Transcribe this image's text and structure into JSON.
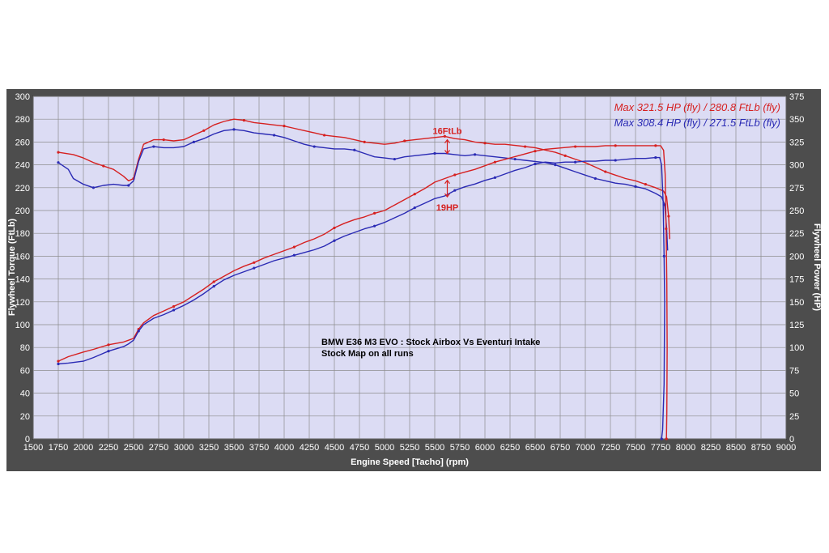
{
  "colors": {
    "frame": "#4d4d4d",
    "plot_bg": "#dcdcf4",
    "grid": "#8c8c8c",
    "text_light": "#ffffff",
    "red_series": "#d62020",
    "blue_series": "#2a2ab4"
  },
  "chart_data": {
    "type": "line",
    "xlabel": "Engine Speed [Tacho] (rpm)",
    "ylabel_left": "Flywheel Torque (FtLb)",
    "ylabel_right": "Flywheel Power (HP)",
    "xlim": [
      1500,
      9000
    ],
    "ylim_left": [
      0,
      300
    ],
    "ylim_right": [
      0,
      375
    ],
    "grid": true,
    "legend_position": "top-right",
    "x_ticks": [
      "1500",
      "1750",
      "2000",
      "2250",
      "2500",
      "2750",
      "3000",
      "3250",
      "3500",
      "3750",
      "4000",
      "4250",
      "4500",
      "4750",
      "5000",
      "5250",
      "5500",
      "5750",
      "6000",
      "6250",
      "6500",
      "6750",
      "7000",
      "7250",
      "7500",
      "7750",
      "8000",
      "8250",
      "8500",
      "8750",
      "9000"
    ],
    "y_left_ticks": [
      "0",
      "20",
      "40",
      "60",
      "80",
      "100",
      "120",
      "140",
      "160",
      "180",
      "200",
      "220",
      "240",
      "260",
      "280",
      "300"
    ],
    "y_right_ticks": [
      "0",
      "25",
      "50",
      "75",
      "100",
      "125",
      "150",
      "175",
      "200",
      "225",
      "250",
      "275",
      "300",
      "325",
      "350",
      "375"
    ],
    "legend": [
      {
        "text": "Max 321.5 HP (fly) / 280.8 FtLb (fly)",
        "color": "#d62020"
      },
      {
        "text": "Max 308.4 HP (fly) / 271.5 FtLb (fly)",
        "color": "#2a2ab4"
      }
    ],
    "annotation_lines": [
      "BMW E36 M3 EVO : Stock Airbox Vs Eventuri Intake",
      "Stock Map on all runs"
    ],
    "delta_labels": [
      {
        "text": "16FtLb",
        "x": 5625,
        "y_torque": 270
      },
      {
        "text": "19HP",
        "x": 5625,
        "y_torque": 203
      }
    ],
    "series": [
      {
        "name": "Max 321.5 HP (fly) / 280.8 FtLb (fly)",
        "color": "#d62020",
        "axis": "torque",
        "points": [
          [
            1750,
            251
          ],
          [
            1900,
            249
          ],
          [
            2000,
            246
          ],
          [
            2100,
            242
          ],
          [
            2200,
            239
          ],
          [
            2300,
            236
          ],
          [
            2400,
            230
          ],
          [
            2450,
            226
          ],
          [
            2500,
            228
          ],
          [
            2550,
            245
          ],
          [
            2600,
            258
          ],
          [
            2700,
            262
          ],
          [
            2800,
            262
          ],
          [
            2900,
            261
          ],
          [
            3000,
            262
          ],
          [
            3100,
            266
          ],
          [
            3200,
            270
          ],
          [
            3300,
            275
          ],
          [
            3400,
            278
          ],
          [
            3500,
            280
          ],
          [
            3600,
            279
          ],
          [
            3700,
            277
          ],
          [
            3800,
            276
          ],
          [
            3900,
            275
          ],
          [
            4000,
            274
          ],
          [
            4100,
            272
          ],
          [
            4200,
            270
          ],
          [
            4300,
            268
          ],
          [
            4400,
            266
          ],
          [
            4500,
            265
          ],
          [
            4600,
            264
          ],
          [
            4700,
            262
          ],
          [
            4800,
            260
          ],
          [
            4900,
            259
          ],
          [
            5000,
            258
          ],
          [
            5100,
            259
          ],
          [
            5200,
            261
          ],
          [
            5300,
            262
          ],
          [
            5400,
            263
          ],
          [
            5500,
            264
          ],
          [
            5600,
            265
          ],
          [
            5700,
            263
          ],
          [
            5800,
            262
          ],
          [
            5900,
            260
          ],
          [
            6000,
            259
          ],
          [
            6100,
            258
          ],
          [
            6200,
            258
          ],
          [
            6300,
            257
          ],
          [
            6400,
            256
          ],
          [
            6500,
            255
          ],
          [
            6600,
            253
          ],
          [
            6700,
            251
          ],
          [
            6800,
            248
          ],
          [
            6900,
            245
          ],
          [
            7000,
            242
          ],
          [
            7100,
            238
          ],
          [
            7200,
            234
          ],
          [
            7300,
            231
          ],
          [
            7400,
            228
          ],
          [
            7500,
            226
          ],
          [
            7600,
            223
          ],
          [
            7700,
            220
          ],
          [
            7780,
            217
          ],
          [
            7810,
            212
          ],
          [
            7830,
            195
          ],
          [
            7840,
            175
          ]
        ]
      },
      {
        "name": "Max 308.4 HP (fly) / 271.5 FtLb (fly)",
        "color": "#2a2ab4",
        "axis": "torque",
        "points": [
          [
            1750,
            242
          ],
          [
            1850,
            236
          ],
          [
            1900,
            228
          ],
          [
            2000,
            223
          ],
          [
            2100,
            220
          ],
          [
            2200,
            222
          ],
          [
            2300,
            223
          ],
          [
            2400,
            222
          ],
          [
            2450,
            222
          ],
          [
            2500,
            226
          ],
          [
            2550,
            243
          ],
          [
            2600,
            254
          ],
          [
            2700,
            256
          ],
          [
            2800,
            255
          ],
          [
            2900,
            255
          ],
          [
            3000,
            256
          ],
          [
            3100,
            260
          ],
          [
            3200,
            263
          ],
          [
            3300,
            267
          ],
          [
            3400,
            270
          ],
          [
            3500,
            271
          ],
          [
            3600,
            270
          ],
          [
            3700,
            268
          ],
          [
            3800,
            267
          ],
          [
            3900,
            266
          ],
          [
            4000,
            264
          ],
          [
            4100,
            261
          ],
          [
            4200,
            258
          ],
          [
            4300,
            256
          ],
          [
            4400,
            255
          ],
          [
            4500,
            254
          ],
          [
            4600,
            254
          ],
          [
            4700,
            253
          ],
          [
            4800,
            250
          ],
          [
            4900,
            247
          ],
          [
            5000,
            246
          ],
          [
            5100,
            245
          ],
          [
            5200,
            247
          ],
          [
            5300,
            248
          ],
          [
            5400,
            249
          ],
          [
            5500,
            250
          ],
          [
            5600,
            250
          ],
          [
            5700,
            249
          ],
          [
            5800,
            248
          ],
          [
            5900,
            249
          ],
          [
            6000,
            248
          ],
          [
            6100,
            247
          ],
          [
            6200,
            246
          ],
          [
            6300,
            245
          ],
          [
            6400,
            244
          ],
          [
            6500,
            243
          ],
          [
            6600,
            242
          ],
          [
            6700,
            240
          ],
          [
            6800,
            237
          ],
          [
            6900,
            234
          ],
          [
            7000,
            231
          ],
          [
            7100,
            228
          ],
          [
            7200,
            226
          ],
          [
            7300,
            224
          ],
          [
            7400,
            223
          ],
          [
            7500,
            221
          ],
          [
            7600,
            219
          ],
          [
            7700,
            215
          ],
          [
            7760,
            212
          ],
          [
            7790,
            205
          ],
          [
            7810,
            185
          ],
          [
            7820,
            165
          ]
        ]
      },
      {
        "name": "",
        "color": "#d62020",
        "axis": "power",
        "points": [
          [
            1750,
            85
          ],
          [
            1850,
            90
          ],
          [
            2000,
            95
          ],
          [
            2100,
            98
          ],
          [
            2250,
            103
          ],
          [
            2400,
            106
          ],
          [
            2450,
            108
          ],
          [
            2500,
            110
          ],
          [
            2550,
            120
          ],
          [
            2600,
            127
          ],
          [
            2700,
            135
          ],
          [
            2800,
            140
          ],
          [
            2900,
            145
          ],
          [
            3000,
            150
          ],
          [
            3100,
            157
          ],
          [
            3200,
            164
          ],
          [
            3300,
            172
          ],
          [
            3400,
            178
          ],
          [
            3500,
            184
          ],
          [
            3600,
            189
          ],
          [
            3700,
            193
          ],
          [
            3800,
            198
          ],
          [
            3900,
            202
          ],
          [
            4000,
            206
          ],
          [
            4100,
            210
          ],
          [
            4200,
            215
          ],
          [
            4300,
            219
          ],
          [
            4400,
            224
          ],
          [
            4500,
            231
          ],
          [
            4600,
            236
          ],
          [
            4700,
            240
          ],
          [
            4800,
            243
          ],
          [
            4900,
            247
          ],
          [
            5000,
            250
          ],
          [
            5100,
            256
          ],
          [
            5200,
            262
          ],
          [
            5300,
            268
          ],
          [
            5400,
            274
          ],
          [
            5500,
            281
          ],
          [
            5600,
            285
          ],
          [
            5700,
            289
          ],
          [
            5800,
            292
          ],
          [
            5900,
            295
          ],
          [
            6000,
            299
          ],
          [
            6100,
            303
          ],
          [
            6200,
            306
          ],
          [
            6300,
            309
          ],
          [
            6400,
            312
          ],
          [
            6500,
            315
          ],
          [
            6600,
            317
          ],
          [
            6700,
            318
          ],
          [
            6800,
            319
          ],
          [
            6900,
            320
          ],
          [
            7000,
            320
          ],
          [
            7100,
            320
          ],
          [
            7200,
            321
          ],
          [
            7300,
            321
          ],
          [
            7400,
            321
          ],
          [
            7500,
            321
          ],
          [
            7600,
            321
          ],
          [
            7700,
            321
          ],
          [
            7750,
            321
          ],
          [
            7780,
            316
          ],
          [
            7795,
            290
          ],
          [
            7805,
            230
          ],
          [
            7812,
            170
          ],
          [
            7815,
            100
          ],
          [
            7812,
            30
          ],
          [
            7808,
            0
          ]
        ]
      },
      {
        "name": "",
        "color": "#2a2ab4",
        "axis": "power",
        "points": [
          [
            1750,
            82
          ],
          [
            1850,
            83
          ],
          [
            2000,
            85
          ],
          [
            2100,
            89
          ],
          [
            2250,
            96
          ],
          [
            2400,
            101
          ],
          [
            2450,
            104
          ],
          [
            2500,
            108
          ],
          [
            2550,
            118
          ],
          [
            2600,
            125
          ],
          [
            2700,
            132
          ],
          [
            2800,
            136
          ],
          [
            2900,
            141
          ],
          [
            3000,
            146
          ],
          [
            3100,
            152
          ],
          [
            3200,
            159
          ],
          [
            3300,
            167
          ],
          [
            3400,
            174
          ],
          [
            3500,
            179
          ],
          [
            3600,
            183
          ],
          [
            3700,
            187
          ],
          [
            3800,
            191
          ],
          [
            3900,
            195
          ],
          [
            4000,
            198
          ],
          [
            4100,
            201
          ],
          [
            4200,
            204
          ],
          [
            4300,
            207
          ],
          [
            4400,
            211
          ],
          [
            4500,
            217
          ],
          [
            4600,
            222
          ],
          [
            4700,
            226
          ],
          [
            4800,
            230
          ],
          [
            4900,
            233
          ],
          [
            5000,
            237
          ],
          [
            5100,
            242
          ],
          [
            5200,
            247
          ],
          [
            5300,
            253
          ],
          [
            5400,
            258
          ],
          [
            5500,
            263
          ],
          [
            5600,
            266
          ],
          [
            5700,
            272
          ],
          [
            5800,
            276
          ],
          [
            5900,
            279
          ],
          [
            6000,
            283
          ],
          [
            6100,
            286
          ],
          [
            6200,
            290
          ],
          [
            6300,
            294
          ],
          [
            6400,
            297
          ],
          [
            6500,
            301
          ],
          [
            6600,
            303
          ],
          [
            6700,
            302
          ],
          [
            6800,
            303
          ],
          [
            6900,
            303
          ],
          [
            7000,
            304
          ],
          [
            7100,
            304
          ],
          [
            7200,
            305
          ],
          [
            7300,
            305
          ],
          [
            7400,
            306
          ],
          [
            7500,
            307
          ],
          [
            7600,
            307
          ],
          [
            7700,
            308
          ],
          [
            7740,
            308
          ],
          [
            7760,
            300
          ],
          [
            7775,
            260
          ],
          [
            7785,
            200
          ],
          [
            7790,
            150
          ],
          [
            7785,
            60
          ],
          [
            7770,
            10
          ],
          [
            7760,
            0
          ]
        ]
      }
    ]
  }
}
